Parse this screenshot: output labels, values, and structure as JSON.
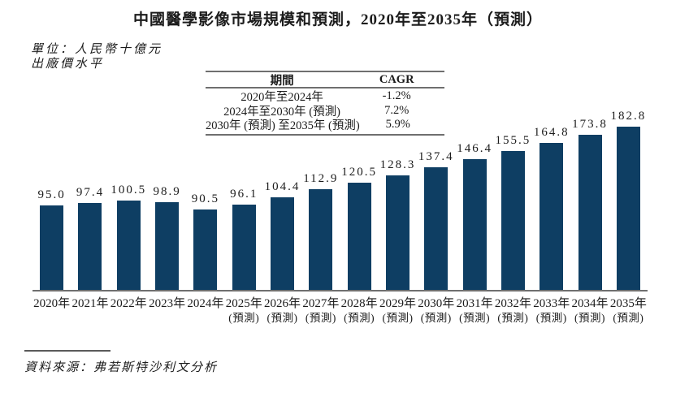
{
  "title": "中國醫學影像市場規模和預測，2020年至2035年（預測）",
  "unit_note": {
    "line1": "單位：人民幣十億元",
    "line2": "出廠價水平"
  },
  "cagr_table": {
    "period_header": "期間",
    "cagr_header": "CAGR",
    "rows": [
      {
        "period": "2020年至2024年",
        "cagr": "-1.2%"
      },
      {
        "period": "2024年至2030年 (預測)",
        "cagr": "7.2%"
      },
      {
        "period": "2030年 (預測) 至2035年 (預測)",
        "cagr": "5.9%"
      }
    ]
  },
  "source_note": "資料來源：弗若斯特沙利文分析",
  "colors": {
    "bar": "#0e3e63",
    "axis_line": "#6f6f6f",
    "table_line": "#6f6f6f"
  },
  "chart_data": {
    "type": "bar",
    "title": "中國醫學影像市場規模和預測，2020年至2035年（預測）",
    "unit": "人民幣十億元（出廠價水平）",
    "categories": [
      "2020年",
      "2021年",
      "2022年",
      "2023年",
      "2024年",
      "2025年",
      "2026年",
      "2027年",
      "2028年",
      "2029年",
      "2030年",
      "2031年",
      "2032年",
      "2033年",
      "2034年",
      "2035年"
    ],
    "forecast_flags": [
      false,
      false,
      false,
      false,
      false,
      true,
      true,
      true,
      true,
      true,
      true,
      true,
      true,
      true,
      true,
      true
    ],
    "forecast_suffix": "(預測)",
    "values": [
      95.0,
      97.4,
      100.5,
      98.9,
      90.5,
      96.1,
      104.4,
      112.9,
      120.5,
      128.3,
      137.4,
      146.4,
      155.5,
      164.8,
      173.8,
      182.8
    ],
    "value_decimals": 1,
    "ylim": [
      0,
      200
    ],
    "grid": false,
    "legend": "none",
    "bar_color": "#0e3e63",
    "cagr_annotations": [
      {
        "period": "2020年至2024年",
        "cagr": -1.2
      },
      {
        "period": "2024年至2030年 (預測)",
        "cagr": 7.2
      },
      {
        "period": "2030年 (預測) 至2035年 (預測)",
        "cagr": 5.9
      }
    ]
  }
}
